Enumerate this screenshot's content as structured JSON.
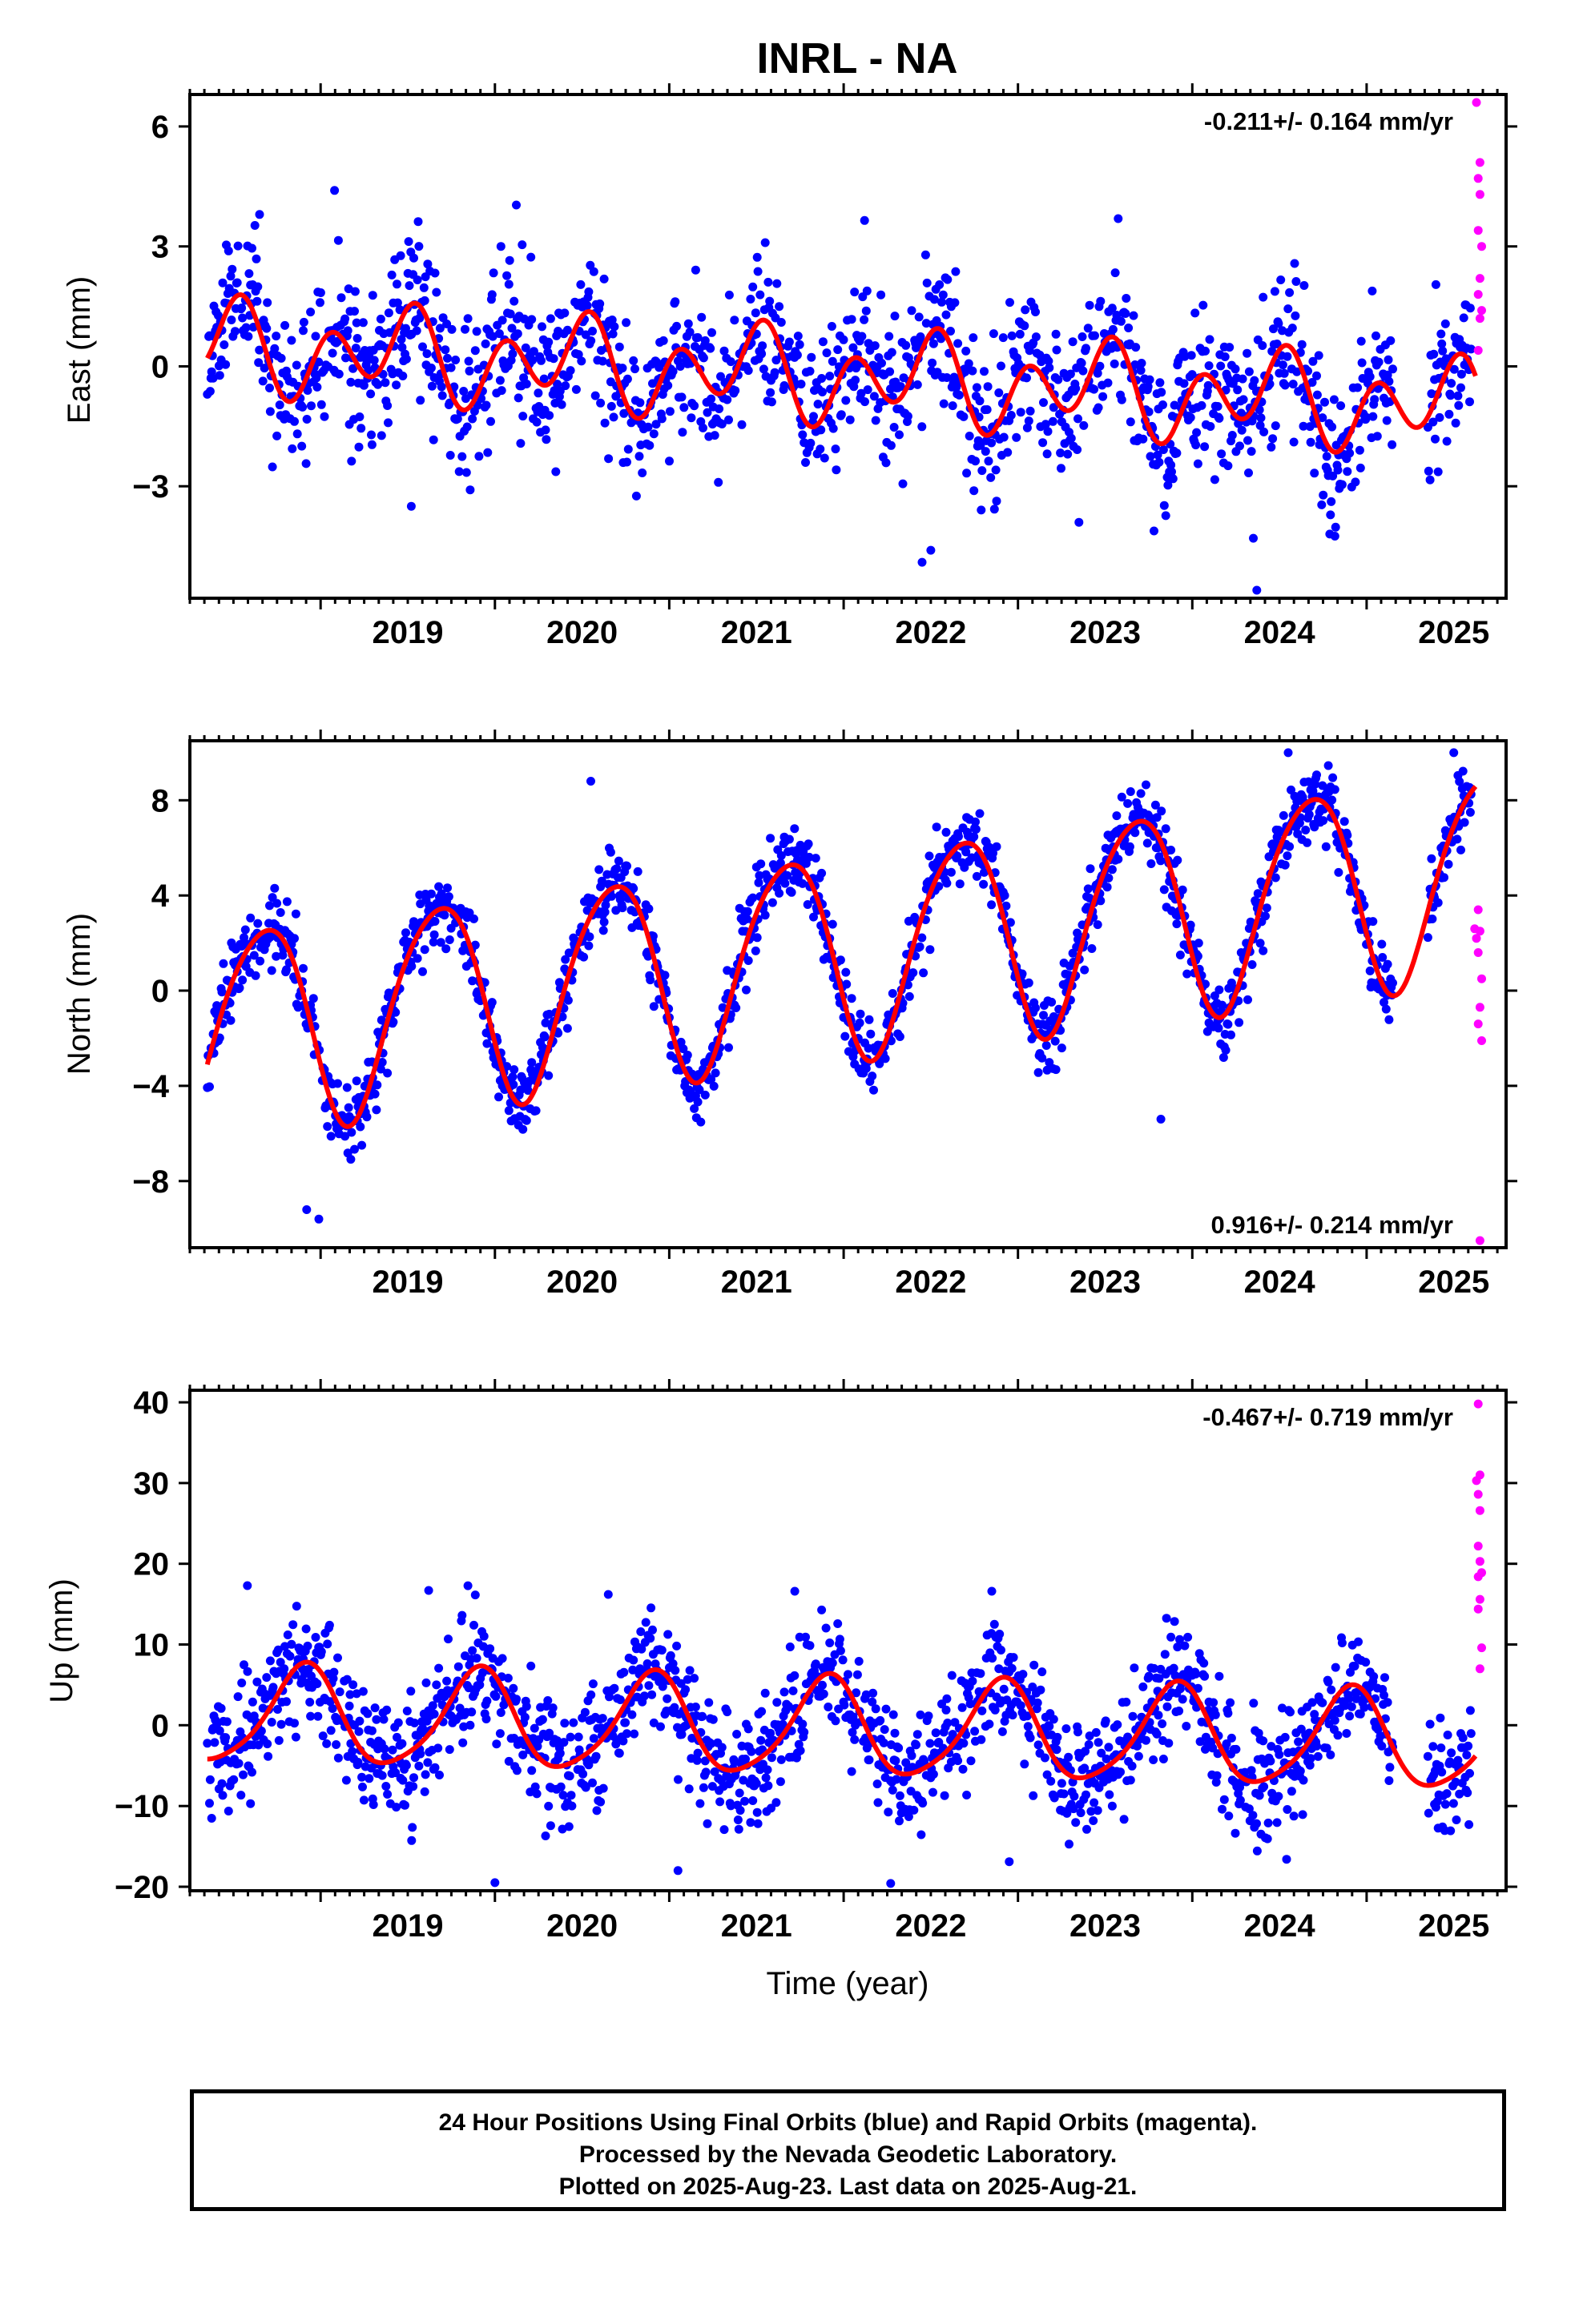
{
  "title": "INRL - NA",
  "xlabel": "Time (year)",
  "footer": {
    "line1": "24 Hour Positions Using Final Orbits (blue) and Rapid Orbits (magenta).",
    "line2": "Processed by the Nevada Geodetic Laboratory.",
    "line3": "Plotted on 2025-Aug-23. Last data on 2025-Aug-21."
  },
  "colors": {
    "final": "#0000ff",
    "rapid": "#ff00ff",
    "model": "#ff0000",
    "axis": "#000000"
  },
  "chart_data": [
    {
      "type": "scatter",
      "panel": "east",
      "ylabel": "East (mm)",
      "rate_label": "-0.211+/- 0.164 mm/yr",
      "rate_position": "top-right",
      "xlim": [
        2018.25,
        2025.8
      ],
      "ylim": [
        -5.8,
        6.8
      ],
      "yticks": [
        -3,
        0,
        3,
        6
      ],
      "xticks": [
        2019,
        2020,
        2021,
        2022,
        2023,
        2024,
        2025
      ],
      "model": {
        "offset": 0.5,
        "rate": -0.211,
        "annual_amp": 0.55,
        "annual_phase": 1.0,
        "semi_amp": 0.9,
        "semi_phase": -1.0,
        "t0": 2018.35,
        "end": 2025.63
      },
      "noise": {
        "seed": 11,
        "sigma": 0.95,
        "start": 2018.35,
        "gap": [
          2025.15,
          2025.35
        ],
        "end": 2025.6,
        "step": 0.0042
      },
      "final_outliers": [
        [
          2018.65,
          3.8
        ],
        [
          2019.08,
          4.4
        ],
        [
          2019.52,
          -3.5
        ],
        [
          2022.12,
          3.65
        ],
        [
          2022.45,
          -4.9
        ],
        [
          2022.5,
          -4.6
        ],
        [
          2024.37,
          -5.6
        ],
        [
          2024.35,
          -4.3
        ],
        [
          2023.35,
          -3.9
        ]
      ],
      "rapid_points": [
        [
          2025.63,
          6.6
        ],
        [
          2025.65,
          5.1
        ],
        [
          2025.64,
          4.7
        ],
        [
          2025.65,
          4.3
        ],
        [
          2025.64,
          3.4
        ],
        [
          2025.66,
          3.0
        ],
        [
          2025.65,
          2.2
        ],
        [
          2025.64,
          1.8
        ],
        [
          2025.66,
          1.4
        ],
        [
          2025.65,
          1.2
        ],
        [
          2025.64,
          0.4
        ]
      ]
    },
    {
      "type": "scatter",
      "panel": "north",
      "ylabel": "North (mm)",
      "rate_label": "0.916+/- 0.214 mm/yr",
      "rate_position": "bottom-right",
      "xlim": [
        2018.25,
        2025.8
      ],
      "ylim": [
        -10.8,
        10.5
      ],
      "yticks": [
        -8,
        -4,
        0,
        4,
        8
      ],
      "xticks": [
        2019,
        2020,
        2021,
        2022,
        2023,
        2024,
        2025
      ],
      "model": {
        "offset": -1.7,
        "rate": 0.916,
        "annual_amp": 4.3,
        "annual_phase": -0.45,
        "semi_amp": 0.5,
        "semi_phase": 1.2,
        "t0": 2018.35,
        "end": 2025.63
      },
      "noise": {
        "seed": 23,
        "sigma": 0.75,
        "start": 2018.35,
        "gap": [
          2025.15,
          2025.35
        ],
        "end": 2025.6,
        "step": 0.0042
      },
      "final_outliers": [
        [
          2018.92,
          -9.2
        ],
        [
          2018.99,
          -9.6
        ],
        [
          2020.55,
          8.8
        ],
        [
          2023.82,
          -5.4
        ],
        [
          2024.55,
          10.0
        ],
        [
          2025.5,
          10.0
        ]
      ],
      "rapid_points": [
        [
          2025.64,
          3.4
        ],
        [
          2025.62,
          2.6
        ],
        [
          2025.65,
          2.5
        ],
        [
          2025.63,
          2.2
        ],
        [
          2025.64,
          1.6
        ],
        [
          2025.66,
          0.5
        ],
        [
          2025.65,
          -0.7
        ],
        [
          2025.64,
          -1.4
        ],
        [
          2025.66,
          -2.1
        ],
        [
          2025.65,
          -10.5
        ]
      ]
    },
    {
      "type": "scatter",
      "panel": "up",
      "ylabel": "Up (mm)",
      "rate_label": "-0.467+/- 0.719 mm/yr",
      "rate_position": "top-right",
      "xlim": [
        2018.25,
        2025.8
      ],
      "ylim": [
        -20.5,
        41.5
      ],
      "yticks": [
        -20,
        -10,
        0,
        10,
        20,
        30,
        40
      ],
      "xticks": [
        2019,
        2020,
        2021,
        2022,
        2023,
        2024,
        2025
      ],
      "model": {
        "offset": 1.2,
        "rate": -0.467,
        "annual_amp": 6.0,
        "annual_phase": -1.9,
        "semi_amp": 1.0,
        "semi_phase": 0.3,
        "t0": 2018.35,
        "end": 2025.63
      },
      "noise": {
        "seed": 37,
        "sigma": 3.6,
        "start": 2018.35,
        "gap": [
          2025.15,
          2025.35
        ],
        "end": 2025.6,
        "step": 0.0042
      },
      "final_outliers": [
        [
          2018.58,
          17.3
        ],
        [
          2019.62,
          16.7
        ],
        [
          2020.0,
          -19.5
        ],
        [
          2020.65,
          16.2
        ],
        [
          2021.05,
          -18.0
        ],
        [
          2021.72,
          16.6
        ],
        [
          2022.27,
          -19.6
        ],
        [
          2022.85,
          16.6
        ],
        [
          2022.95,
          -16.9
        ]
      ],
      "rapid_points": [
        [
          2025.64,
          39.8
        ],
        [
          2025.65,
          31.0
        ],
        [
          2025.63,
          30.3
        ],
        [
          2025.64,
          28.6
        ],
        [
          2025.65,
          26.6
        ],
        [
          2025.64,
          22.2
        ],
        [
          2025.65,
          20.3
        ],
        [
          2025.66,
          18.9
        ],
        [
          2025.64,
          18.4
        ],
        [
          2025.65,
          15.6
        ],
        [
          2025.64,
          14.4
        ],
        [
          2025.66,
          9.6
        ],
        [
          2025.65,
          7.0
        ]
      ]
    }
  ]
}
